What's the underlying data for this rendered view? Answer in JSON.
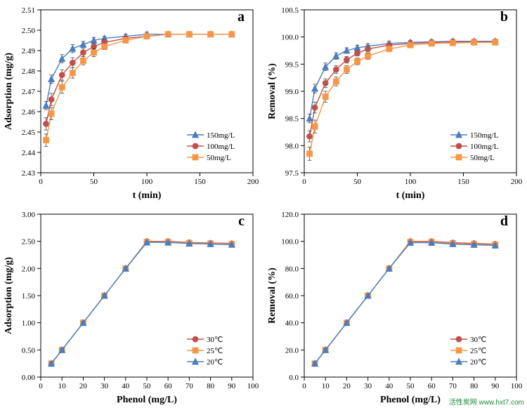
{
  "colors": {
    "line_blue": "#4a7dbf",
    "line_red": "#c0504d",
    "line_orange": "#f79646",
    "axis": "#000000",
    "errbar": "#333333",
    "bg": "#ffffff"
  },
  "marker_size": 4,
  "line_width": 1.4,
  "err_cap": 3,
  "panel_a": {
    "letter": "a",
    "x_label": "t (min)",
    "y_label": "Adsorption (mg/g)",
    "xlim": [
      0,
      200
    ],
    "x_ticks": [
      0,
      50,
      100,
      150,
      200
    ],
    "ylim": [
      2.43,
      2.51
    ],
    "y_ticks": [
      2.43,
      2.44,
      2.45,
      2.46,
      2.47,
      2.48,
      2.49,
      2.5,
      2.51
    ],
    "legend": [
      "150mg/L",
      "100mg/L",
      "50mg/L"
    ],
    "series": [
      {
        "color": "line_blue",
        "marker": "triangle",
        "x": [
          5,
          10,
          20,
          30,
          40,
          50,
          60,
          80,
          100,
          120,
          140,
          160,
          180
        ],
        "y": [
          2.463,
          2.476,
          2.486,
          2.491,
          2.493,
          2.495,
          2.496,
          2.497,
          2.498,
          2.498,
          2.498,
          2.498,
          2.498
        ],
        "err": [
          0.002,
          0.002,
          0.002,
          0.002,
          0.0015,
          0.0015,
          0.001,
          0.001,
          0.001,
          0.001,
          0.001,
          0.001,
          0.001
        ]
      },
      {
        "color": "line_red",
        "marker": "circle",
        "x": [
          5,
          10,
          20,
          30,
          40,
          50,
          60,
          80,
          100,
          120,
          140,
          160,
          180
        ],
        "y": [
          2.454,
          2.466,
          2.478,
          2.484,
          2.489,
          2.492,
          2.494,
          2.496,
          2.497,
          2.498,
          2.498,
          2.498,
          2.498
        ],
        "err": [
          0.003,
          0.003,
          0.0025,
          0.0025,
          0.002,
          0.0015,
          0.0015,
          0.001,
          0.001,
          0.001,
          0.001,
          0.001,
          0.001
        ]
      },
      {
        "color": "line_orange",
        "marker": "square",
        "x": [
          5,
          10,
          20,
          30,
          40,
          50,
          60,
          80,
          100,
          120,
          140,
          160,
          180
        ],
        "y": [
          2.446,
          2.459,
          2.472,
          2.479,
          2.485,
          2.489,
          2.492,
          2.495,
          2.497,
          2.498,
          2.498,
          2.498,
          2.498
        ],
        "err": [
          0.003,
          0.003,
          0.003,
          0.0025,
          0.002,
          0.002,
          0.0015,
          0.001,
          0.001,
          0.001,
          0.001,
          0.001,
          0.001
        ]
      }
    ]
  },
  "panel_b": {
    "letter": "b",
    "x_label": "t (min)",
    "y_label": "Removal  (%)",
    "xlim": [
      0,
      200
    ],
    "x_ticks": [
      0,
      50,
      100,
      150,
      200
    ],
    "ylim": [
      97.5,
      100.5
    ],
    "y_ticks": [
      97.5,
      98.0,
      98.5,
      99.0,
      99.5,
      100.0,
      100.5
    ],
    "legend": [
      "150mg/L",
      "100mg/L",
      "50mg/L"
    ],
    "series": [
      {
        "color": "line_blue",
        "marker": "triangle",
        "x": [
          5,
          10,
          20,
          30,
          40,
          50,
          60,
          80,
          100,
          120,
          140,
          160,
          180
        ],
        "y": [
          98.5,
          99.05,
          99.45,
          99.65,
          99.75,
          99.8,
          99.83,
          99.88,
          99.9,
          99.91,
          99.92,
          99.92,
          99.92
        ],
        "err": [
          0.08,
          0.08,
          0.07,
          0.06,
          0.05,
          0.05,
          0.04,
          0.04,
          0.04,
          0.04,
          0.04,
          0.04,
          0.04
        ]
      },
      {
        "color": "line_red",
        "marker": "circle",
        "x": [
          5,
          10,
          20,
          30,
          40,
          50,
          60,
          80,
          100,
          120,
          140,
          160,
          180
        ],
        "y": [
          98.17,
          98.7,
          99.15,
          99.4,
          99.58,
          99.7,
          99.78,
          99.85,
          99.88,
          99.9,
          99.91,
          99.91,
          99.91
        ],
        "err": [
          0.1,
          0.1,
          0.08,
          0.07,
          0.06,
          0.05,
          0.05,
          0.04,
          0.04,
          0.04,
          0.04,
          0.04,
          0.04
        ]
      },
      {
        "color": "line_orange",
        "marker": "square",
        "x": [
          5,
          10,
          20,
          30,
          40,
          50,
          60,
          80,
          100,
          120,
          140,
          160,
          180
        ],
        "y": [
          97.85,
          98.35,
          98.9,
          99.18,
          99.4,
          99.55,
          99.65,
          99.78,
          99.85,
          99.88,
          99.89,
          99.9,
          99.9
        ],
        "err": [
          0.12,
          0.12,
          0.1,
          0.08,
          0.07,
          0.06,
          0.06,
          0.05,
          0.04,
          0.04,
          0.04,
          0.04,
          0.04
        ]
      }
    ]
  },
  "panel_c": {
    "letter": "c",
    "x_label": "Phenol (mg/L)",
    "y_label": "Adsorption (mg/g)",
    "xlim": [
      0,
      100
    ],
    "x_ticks": [
      0,
      10,
      20,
      30,
      40,
      50,
      60,
      70,
      80,
      90,
      100
    ],
    "ylim": [
      0,
      3.0
    ],
    "y_ticks": [
      0.0,
      0.5,
      1.0,
      1.5,
      2.0,
      2.5,
      3.0
    ],
    "legend": [
      "30℃",
      "25℃",
      "20℃"
    ],
    "series": [
      {
        "color": "line_red",
        "marker": "circle",
        "x": [
          5,
          10,
          20,
          30,
          40,
          50,
          60,
          70,
          80,
          90
        ],
        "y": [
          0.25,
          0.5,
          1.0,
          1.5,
          2.0,
          2.5,
          2.5,
          2.48,
          2.47,
          2.46
        ],
        "err": [
          0.02,
          0.02,
          0.02,
          0.02,
          0.02,
          0.02,
          0.02,
          0.02,
          0.02,
          0.02
        ]
      },
      {
        "color": "line_orange",
        "marker": "square",
        "x": [
          5,
          10,
          20,
          30,
          40,
          50,
          60,
          70,
          80,
          90
        ],
        "y": [
          0.25,
          0.5,
          1.0,
          1.5,
          2.0,
          2.49,
          2.49,
          2.47,
          2.46,
          2.45
        ],
        "err": [
          0.02,
          0.02,
          0.02,
          0.02,
          0.02,
          0.02,
          0.02,
          0.02,
          0.02,
          0.02
        ]
      },
      {
        "color": "line_blue",
        "marker": "triangle",
        "x": [
          5,
          10,
          20,
          30,
          40,
          50,
          60,
          70,
          80,
          90
        ],
        "y": [
          0.25,
          0.5,
          1.0,
          1.5,
          2.0,
          2.48,
          2.48,
          2.46,
          2.45,
          2.44
        ],
        "err": [
          0.02,
          0.02,
          0.02,
          0.02,
          0.02,
          0.02,
          0.02,
          0.02,
          0.02,
          0.02
        ]
      }
    ]
  },
  "panel_d": {
    "letter": "d",
    "x_label": "Phenol (mg/L)",
    "y_label": "Removal (%)",
    "xlim": [
      0,
      100
    ],
    "x_ticks": [
      0,
      10,
      20,
      30,
      40,
      50,
      60,
      70,
      80,
      90,
      100
    ],
    "ylim": [
      0,
      120
    ],
    "y_ticks": [
      0.0,
      20.0,
      40.0,
      60.0,
      80.0,
      100.0,
      120.0
    ],
    "legend": [
      "30℃",
      "25℃",
      "20℃"
    ],
    "series": [
      {
        "color": "line_red",
        "marker": "circle",
        "x": [
          5,
          10,
          20,
          30,
          40,
          50,
          60,
          70,
          80,
          90
        ],
        "y": [
          10,
          20,
          40,
          60,
          80,
          100,
          100,
          99,
          98.5,
          98
        ],
        "err": [
          1,
          1,
          1,
          1,
          1,
          1,
          1,
          1,
          1,
          1
        ]
      },
      {
        "color": "line_orange",
        "marker": "square",
        "x": [
          5,
          10,
          20,
          30,
          40,
          50,
          60,
          70,
          80,
          90
        ],
        "y": [
          10,
          20,
          40,
          60,
          80,
          99.5,
          99.5,
          98.5,
          98,
          97.5
        ],
        "err": [
          1,
          1,
          1,
          1,
          1,
          1,
          1,
          1,
          1,
          1
        ]
      },
      {
        "color": "line_blue",
        "marker": "triangle",
        "x": [
          5,
          10,
          20,
          30,
          40,
          50,
          60,
          70,
          80,
          90
        ],
        "y": [
          10,
          20,
          40,
          60,
          80,
          99,
          99,
          98,
          97.5,
          97
        ],
        "err": [
          1,
          1,
          1,
          1,
          1,
          1,
          1,
          1,
          1,
          1
        ]
      }
    ]
  },
  "watermark": "活性炭网  www.hxt7.com"
}
